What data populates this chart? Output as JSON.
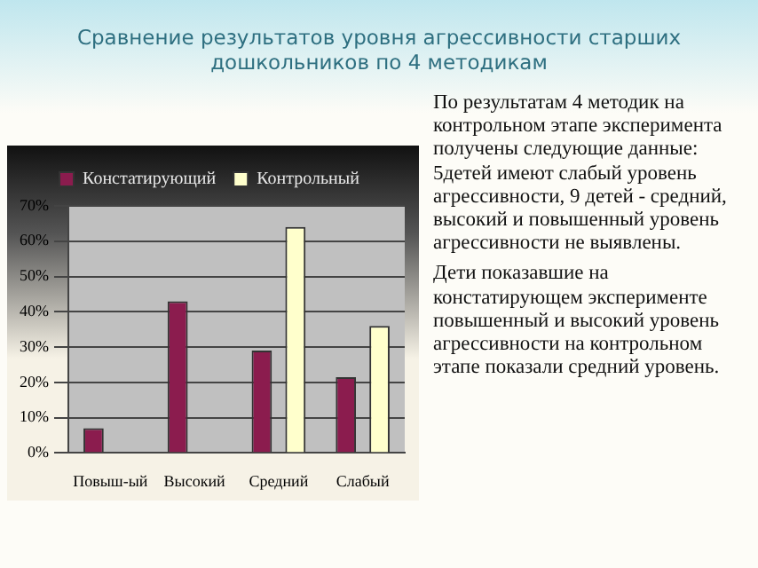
{
  "chart_data": {
    "type": "bar",
    "title": "Сравнение результатов уровня агрессивности старших дошкольников по 4 методикам",
    "categories": [
      "Повыш-ый",
      "Высокий",
      "Средний",
      "Слабый"
    ],
    "series": [
      {
        "name": "Констатирующий",
        "color": "#8b1c4e",
        "values": [
          7,
          43,
          29,
          21.5
        ]
      },
      {
        "name": "Контрольный",
        "color": "#ffffcc",
        "values": [
          0,
          0,
          64,
          36
        ]
      }
    ],
    "ylim": [
      0,
      70
    ],
    "yticks": [
      {
        "value": 0,
        "label": "0%"
      },
      {
        "value": 10,
        "label": "10%"
      },
      {
        "value": 20,
        "label": "20%"
      },
      {
        "value": 30,
        "label": "30%"
      },
      {
        "value": 40,
        "label": "40%"
      },
      {
        "value": 50,
        "label": "50%"
      },
      {
        "value": 60,
        "label": "60%"
      },
      {
        "value": 70,
        "label": "70%"
      }
    ],
    "grid": "y",
    "legend": "top",
    "annotations": [
      "По результатам 4 методик на контрольном этапе эксперимента получены следующие данные: 5детей имеют слабый уровень агрессивности, 9 детей - средний, высокий и повышенный уровень агрессивности не выявлены.",
      "Дети показавшие на констатирующем эксперименте повышенный и высокий уровень агрессивности  на контрольном этапе показали средний уровень."
    ]
  }
}
